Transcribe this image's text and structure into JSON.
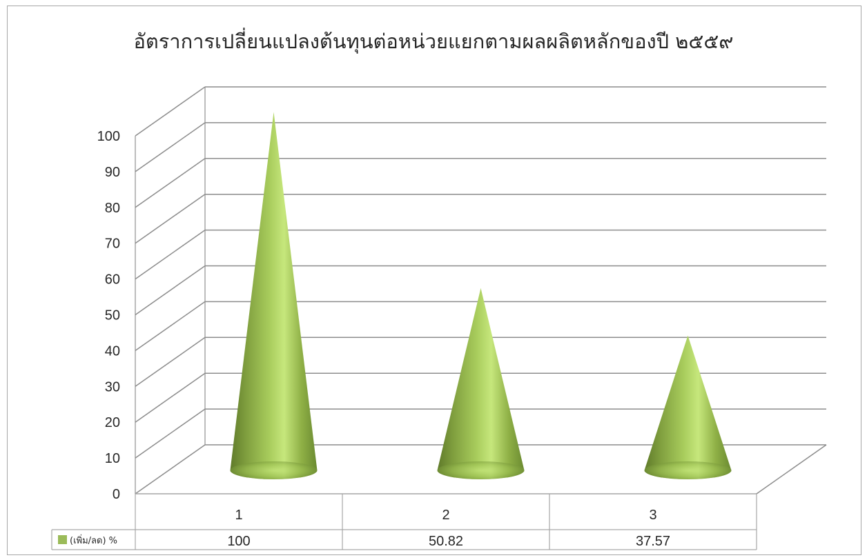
{
  "chart_data": {
    "type": "bar",
    "bar_shape": "cone-3d",
    "title": "อัตราการเปลี่ยนแปลงต้นทุนต่อหน่วยแยกตามผลผลิตหลักของปี ๒๕๕๙",
    "categories": [
      "1",
      "2",
      "3"
    ],
    "series": [
      {
        "name": "(เพิ่ม/ลด) %",
        "values": [
          100,
          50.82,
          37.57
        ],
        "color": "#9bbb59"
      }
    ],
    "ylim": [
      0,
      100
    ],
    "yticks": [
      0,
      10,
      20,
      30,
      40,
      50,
      60,
      70,
      80,
      90,
      100
    ],
    "grid": true,
    "data_table": true,
    "legend_placement": "data-table-left"
  }
}
